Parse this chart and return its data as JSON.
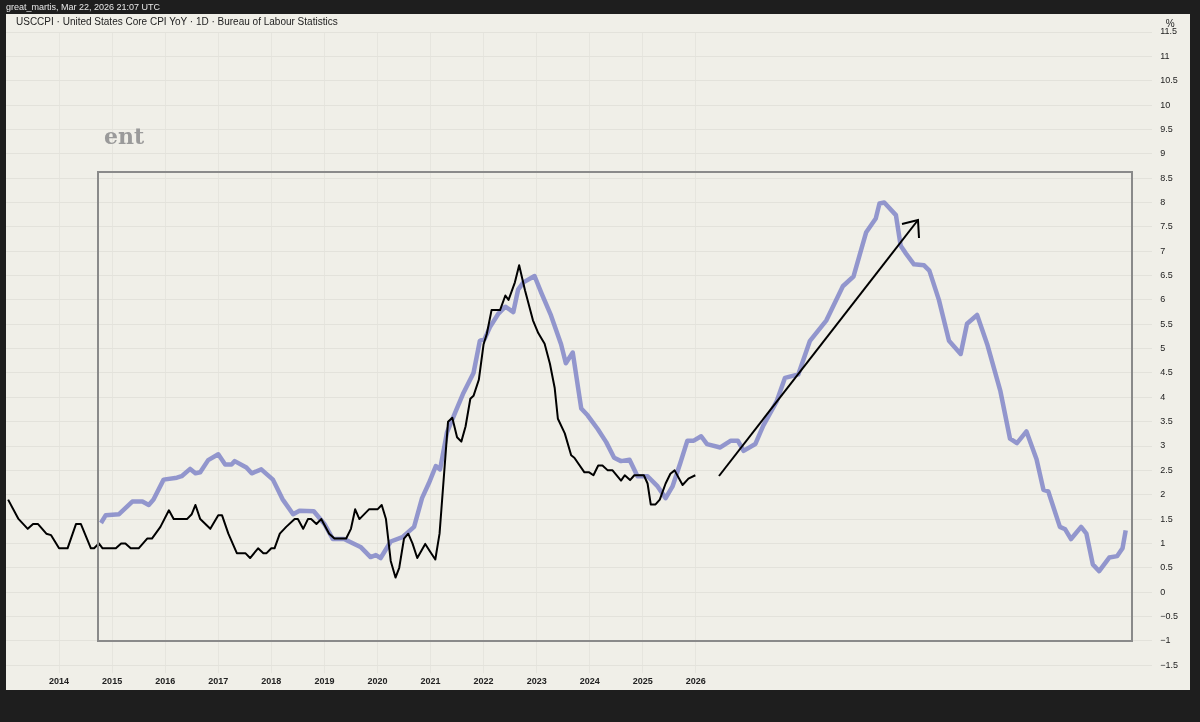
{
  "chart_data": {
    "type": "line",
    "title": "USCCPI · United States Core CPI YoY · 1D · Bureau of Labour Statistics",
    "subtitle": "great_martis, Mar 22, 2026 21:07 UTC",
    "ylabel": "%",
    "annotations": [
      "ent"
    ],
    "series": [
      {
        "color": "#7b7fc6",
        "x": [
          2014.79,
          2014.88,
          2015.13,
          2015.38,
          2015.57,
          2015.69,
          2015.78,
          2015.97,
          2016.22,
          2016.31,
          2016.47,
          2016.57,
          2016.66,
          2016.81,
          2017.0,
          2017.13,
          2017.25,
          2017.31,
          2017.53,
          2017.63,
          2017.81,
          2018.03,
          2018.21,
          2018.41,
          2018.53,
          2018.8,
          2019.0,
          2019.16,
          2019.37,
          2019.69,
          2019.87,
          2019.97,
          2020.06,
          2020.25,
          2020.47,
          2020.69,
          2020.84,
          2020.97,
          2021.1,
          2021.18,
          2021.31,
          2021.47,
          2021.62,
          2021.81,
          2021.93,
          2022.02,
          2022.12,
          2022.28,
          2022.41,
          2022.56,
          2022.65,
          2022.75,
          2022.96,
          2023.09,
          2023.27,
          2023.46,
          2023.55,
          2023.68,
          2023.84,
          2023.96,
          2024.15,
          2024.31,
          2024.46,
          2024.59,
          2024.75,
          2024.9,
          2025.09,
          2025.28,
          2025.43,
          2025.56,
          2025.71,
          2025.84,
          2025.96,
          2026.1,
          2026.21,
          2026.46,
          2026.66,
          2026.79,
          2026.9,
          2027.12,
          2027.27,
          2027.52,
          2027.68,
          2027.93,
          2028.15,
          2028.46,
          2028.77,
          2028.97,
          2029.21,
          2029.39,
          2029.46,
          2029.55,
          2029.77,
          2029.86,
          2029.96,
          2030.11,
          2030.3,
          2030.4,
          2030.58,
          2030.77,
          2030.99,
          2031.11,
          2031.3,
          2031.49,
          2031.74,
          2031.92,
          2032.05,
          2032.23,
          2032.42,
          2032.55,
          2032.64,
          2032.86,
          2032.96,
          2033.07,
          2033.26,
          2033.36,
          2033.48,
          2033.6,
          2033.79,
          2033.94,
          2034.04,
          2034.1
        ],
        "values": [
          1.42,
          1.58,
          1.6,
          1.86,
          1.86,
          1.79,
          1.9,
          2.31,
          2.35,
          2.38,
          2.53,
          2.44,
          2.46,
          2.71,
          2.83,
          2.62,
          2.62,
          2.69,
          2.56,
          2.44,
          2.52,
          2.31,
          1.91,
          1.6,
          1.67,
          1.66,
          1.4,
          1.09,
          1.09,
          0.92,
          0.72,
          0.76,
          0.7,
          1.04,
          1.13,
          1.34,
          1.93,
          2.24,
          2.59,
          2.52,
          3.28,
          3.7,
          4.09,
          4.5,
          5.16,
          5.2,
          5.44,
          5.72,
          5.86,
          5.75,
          6.21,
          6.36,
          6.49,
          6.14,
          5.68,
          5.09,
          4.7,
          4.92,
          3.77,
          3.63,
          3.35,
          3.08,
          2.76,
          2.69,
          2.72,
          2.38,
          2.38,
          2.17,
          1.93,
          2.17,
          2.66,
          3.11,
          3.11,
          3.2,
          3.04,
          2.97,
          3.11,
          3.11,
          2.9,
          3.04,
          3.42,
          3.91,
          4.4,
          4.47,
          5.16,
          5.58,
          6.28,
          6.48,
          7.39,
          7.67,
          7.98,
          8.0,
          7.74,
          7.11,
          6.95,
          6.73,
          6.71,
          6.6,
          6.0,
          5.16,
          4.89,
          5.51,
          5.69,
          5.09,
          4.12,
          3.15,
          3.06,
          3.3,
          2.73,
          2.1,
          2.07,
          1.34,
          1.29,
          1.09,
          1.34,
          1.2,
          0.57,
          0.43,
          0.71,
          0.74,
          0.9,
          1.27
        ]
      },
      {
        "color": "#000000",
        "x": [
          2013.04,
          2013.23,
          2013.41,
          2013.51,
          2013.6,
          2013.76,
          2013.85,
          2014.0,
          2014.16,
          2014.32,
          2014.41,
          2014.6,
          2014.66,
          2014.75,
          2014.82,
          2015.07,
          2015.17,
          2015.25,
          2015.35,
          2015.5,
          2015.66,
          2015.75,
          2015.91,
          2016.07,
          2016.16,
          2016.41,
          2016.5,
          2016.57,
          2016.66,
          2016.85,
          2017.0,
          2017.07,
          2017.19,
          2017.35,
          2017.51,
          2017.6,
          2017.75,
          2017.85,
          2017.91,
          2018.0,
          2018.06,
          2018.16,
          2018.28,
          2018.44,
          2018.5,
          2018.6,
          2018.69,
          2018.75,
          2018.85,
          2018.94,
          2019.09,
          2019.19,
          2019.41,
          2019.5,
          2019.58,
          2019.66,
          2019.84,
          2020.0,
          2020.08,
          2020.16,
          2020.25,
          2020.34,
          2020.41,
          2020.5,
          2020.58,
          2020.66,
          2020.75,
          2020.9,
          2021.0,
          2021.09,
          2021.17,
          2021.33,
          2021.41,
          2021.5,
          2021.58,
          2021.66,
          2021.75,
          2021.81,
          2021.91,
          2022.0,
          2022.06,
          2022.15,
          2022.31,
          2022.41,
          2022.47,
          2022.59,
          2022.67,
          2022.78,
          2022.93,
          2023.03,
          2023.15,
          2023.25,
          2023.34,
          2023.4,
          2023.53,
          2023.65,
          2023.71,
          2023.9,
          2023.99,
          2024.07,
          2024.16,
          2024.24,
          2024.34,
          2024.43,
          2024.59,
          2024.66,
          2024.76,
          2024.84,
          2025.02,
          2025.09,
          2025.15,
          2025.24,
          2025.32,
          2025.43,
          2025.52,
          2025.6,
          2025.75,
          2025.86,
          2025.99
        ],
        "values": [
          1.9,
          1.51,
          1.3,
          1.4,
          1.4,
          1.2,
          1.17,
          0.9,
          0.9,
          1.4,
          1.4,
          0.9,
          0.9,
          1.0,
          0.9,
          0.9,
          1.0,
          1.0,
          0.9,
          0.9,
          1.1,
          1.1,
          1.34,
          1.68,
          1.5,
          1.5,
          1.6,
          1.79,
          1.5,
          1.3,
          1.58,
          1.58,
          1.2,
          0.8,
          0.8,
          0.7,
          0.9,
          0.8,
          0.8,
          0.9,
          0.9,
          1.2,
          1.34,
          1.5,
          1.5,
          1.3,
          1.5,
          1.5,
          1.4,
          1.5,
          1.2,
          1.1,
          1.1,
          1.3,
          1.7,
          1.5,
          1.7,
          1.7,
          1.79,
          1.5,
          0.64,
          0.3,
          0.5,
          1.1,
          1.2,
          1.0,
          0.7,
          0.99,
          0.82,
          0.67,
          1.2,
          3.5,
          3.58,
          3.18,
          3.09,
          3.4,
          3.97,
          4.03,
          4.36,
          5.09,
          5.3,
          5.79,
          5.79,
          6.09,
          6.0,
          6.36,
          6.71,
          6.2,
          5.58,
          5.32,
          5.1,
          4.69,
          4.19,
          3.56,
          3.26,
          2.81,
          2.76,
          2.46,
          2.46,
          2.4,
          2.6,
          2.6,
          2.5,
          2.5,
          2.29,
          2.4,
          2.3,
          2.4,
          2.4,
          2.23,
          1.8,
          1.8,
          1.9,
          2.23,
          2.43,
          2.5,
          2.2,
          2.33,
          2.4
        ]
      }
    ],
    "xlim": [
      2013,
      2034.6
    ],
    "xticks": [
      2014,
      2015,
      2016,
      2017,
      2018,
      2019,
      2020,
      2021,
      2022,
      2023,
      2024,
      2025,
      2026
    ],
    "ylim": [
      -1.5,
      11.5
    ],
    "yticks": [
      -1.5,
      -1,
      -0.5,
      0,
      0.5,
      1,
      1.5,
      2,
      2.5,
      3,
      3.5,
      4,
      4.5,
      5,
      5.5,
      6,
      6.5,
      7,
      7.5,
      8,
      8.5,
      9,
      9.5,
      10,
      10.5,
      11,
      11.5
    ],
    "grid": true,
    "legend": false,
    "marker": "none",
    "line_style": "solid"
  }
}
